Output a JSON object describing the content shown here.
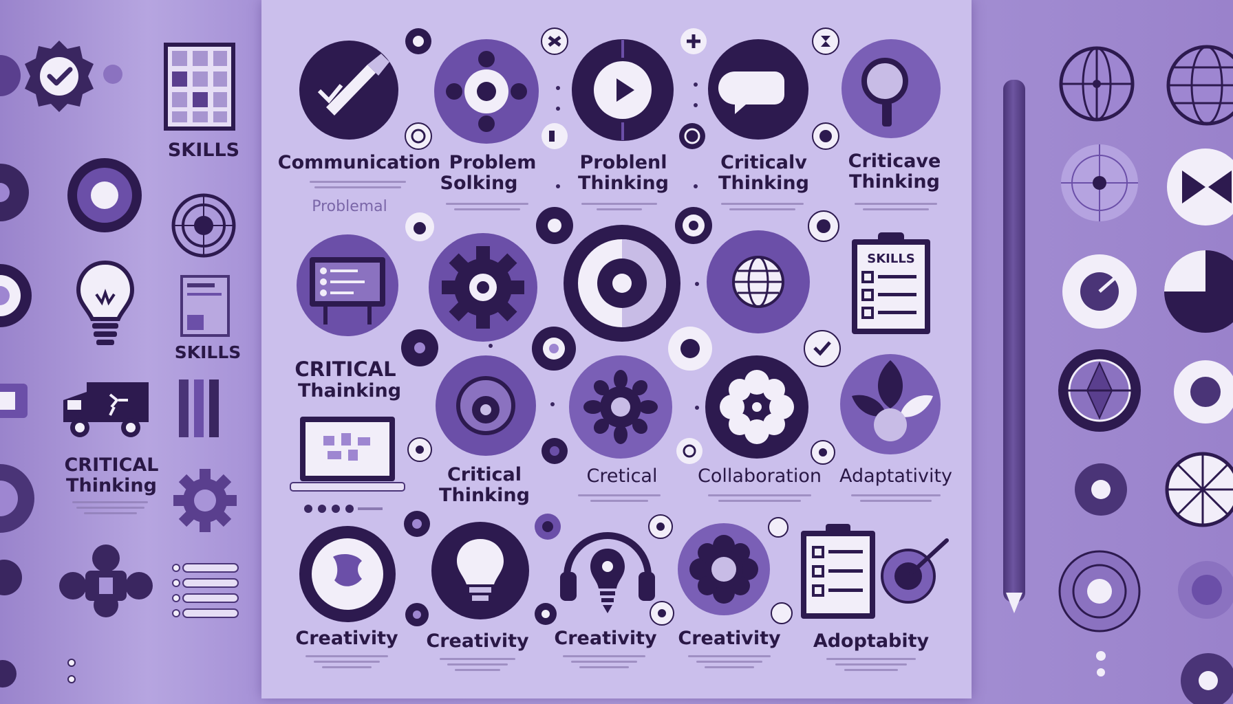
{
  "colors": {
    "dark": "#2d1a4f",
    "mid": "#6b4fa8",
    "light": "#9e86d1",
    "panel": "#cbbfec",
    "cream": "#f2eef9"
  },
  "left_column": {
    "skills_top": "SKILLS",
    "skills_mid": "SKILLS",
    "critical_thinking": [
      "CRITICAL",
      "Thinking"
    ]
  },
  "panel": {
    "side_label_critical": [
      "CRITICAL",
      "Thainking"
    ],
    "problemal": "Problemal",
    "row1_labels": [
      [
        "Communication",
        ""
      ],
      [
        "Problem",
        "Solking"
      ],
      [
        "Problenl",
        "Thinking"
      ],
      [
        "Criticalv",
        "Thinking"
      ],
      [
        "Criticave",
        "Thinking"
      ]
    ],
    "clipboard_title": "SKILLS",
    "row3_labels": [
      [
        "Critical",
        "Thinking"
      ],
      [
        "Cretical",
        ""
      ],
      [
        "Collaboration",
        ""
      ],
      [
        "Adaptativity",
        ""
      ]
    ],
    "row4_labels": [
      "Creativity",
      "Creativity",
      "Creativity",
      "Creativity",
      "Adoptabity"
    ]
  },
  "icons": {
    "row1": [
      "pen-check-icon",
      "network-nodes-icon",
      "play-button-icon",
      "speech-bubble-icon",
      "magnifier-icon"
    ],
    "row2": [
      "monitor-checklist-icon",
      "gear-icon",
      "target-icon",
      "globe-icon",
      "skills-clipboard-icon"
    ],
    "row3": [
      "laptop-icon",
      "brain-profile-icon",
      "gear-flower-icon",
      "flower-icon",
      "leaves-icon"
    ],
    "row4": [
      "head-puzzle-icon",
      "head-bulb-icon",
      "headphones-bulb-icon",
      "flower-gear-icon",
      "checklist-icon",
      "paint-brush-icon"
    ],
    "left": [
      "badge-check-icon",
      "calendar-grid-icon",
      "knob-icon",
      "target-ring-icon",
      "lightbulb-icon",
      "note-card-icon",
      "truck-icon",
      "bars-icon",
      "gear-icon",
      "puzzle-icon",
      "list-lines-icon"
    ],
    "right": [
      "crosshair-globe-icon",
      "globe-icon",
      "radar-icon",
      "bowtie-icon",
      "dial-icon",
      "pie-icon",
      "compass-icon",
      "ring-icon",
      "grid-globe-icon",
      "target-icon",
      "wheel-icon"
    ]
  }
}
